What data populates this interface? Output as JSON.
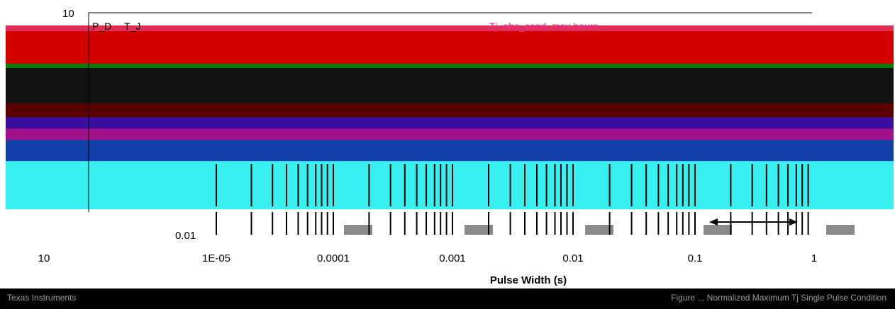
{
  "chart_data": {
    "type": "line",
    "title": "",
    "xlabel": "Pulse Width (s)",
    "ylabel": "",
    "x_scale": "log",
    "x_tick_labels": [
      "10",
      "1E-05",
      "0.0001",
      "0.001",
      "0.01",
      "0.1",
      "1"
    ],
    "y_tick_labels_visible": [
      "10",
      "0.01"
    ],
    "annotations": [
      "Tj, abs_cond, max,hours",
      "P_D",
      "T_J"
    ],
    "footer_left": "Texas Instruments",
    "footer_right": "Figure ... Normalized Maximum Tj Single Pulse Condition"
  },
  "colors": {
    "band_red": "#d40000",
    "band_dark": "#121212",
    "band_maroon": "#5a0000",
    "band_indigo": "#3a0fa0",
    "band_purple": "#a0108a",
    "band_blue": "#1040a8",
    "band_cyan": "#38f0f0",
    "band_green": "#0a7a0a",
    "annotation_magenta": "#e0308a"
  }
}
